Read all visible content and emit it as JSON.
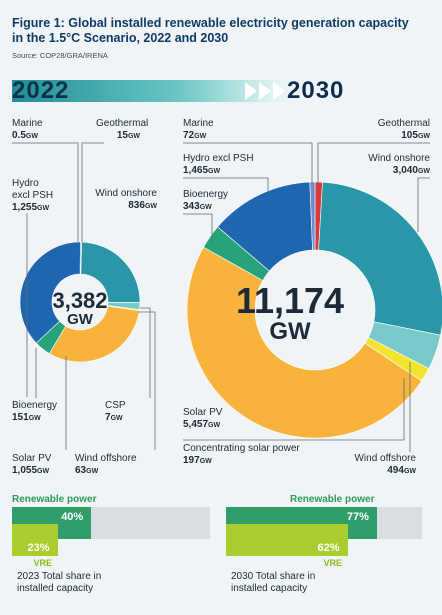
{
  "header": {
    "title": "Figure 1: Global installed renewable electricity generation capacity in the 1.5°C Scenario, 2022 and 2030",
    "source": "Source: COP28/GRA/IRENA"
  },
  "years": {
    "left": "2022",
    "right": "2030"
  },
  "unit": "GW",
  "colors": {
    "solar": "#f7b33b",
    "wind_onshore": "#2a97a8",
    "wind_offshore": "#79c8cc",
    "hydro": "#1f66b1",
    "bioenergy": "#26a37a",
    "geothermal": "#d93a3a",
    "marine": "#6b8fd6",
    "csp": "#f2e52e",
    "renewable_bar": "#2f9e6a",
    "vre_bar": "#a9cd2e",
    "bar_bg": "#dadee2"
  },
  "chart_data": [
    {
      "type": "pie",
      "year": "2022",
      "total": "3,382",
      "total_unit": "GW",
      "slices": [
        {
          "key": "geothermal",
          "name": "Geothermal",
          "value": 15,
          "label_value": "15"
        },
        {
          "key": "wind_onshore",
          "name": "Wind onshore",
          "value": 836,
          "label_value": "836"
        },
        {
          "key": "wind_offshore",
          "name": "Wind offshore",
          "value": 63,
          "label_value": "63"
        },
        {
          "key": "csp",
          "name": "CSP",
          "value": 7,
          "label_value": "7"
        },
        {
          "key": "solar",
          "name": "Solar PV",
          "value": 1055,
          "label_value": "1,055"
        },
        {
          "key": "bioenergy",
          "name": "Bioenergy",
          "value": 151,
          "label_value": "151"
        },
        {
          "key": "hydro",
          "name": "Hydro excl PSH",
          "value": 1255,
          "label_value": "1,255"
        },
        {
          "key": "marine",
          "name": "Marine",
          "value": 0.5,
          "label_value": "0.5"
        }
      ]
    },
    {
      "type": "pie",
      "year": "2030",
      "total": "11,174",
      "total_unit": "GW",
      "slices": [
        {
          "key": "geothermal",
          "name": "Geothermal",
          "value": 105,
          "label_value": "105"
        },
        {
          "key": "wind_onshore",
          "name": "Wind onshore",
          "value": 3040,
          "label_value": "3,040"
        },
        {
          "key": "wind_offshore",
          "name": "Wind offshore",
          "value": 494,
          "label_value": "494"
        },
        {
          "key": "csp",
          "name": "Concentrating solar power",
          "value": 197,
          "label_value": "197"
        },
        {
          "key": "solar",
          "name": "Solar PV",
          "value": 5457,
          "label_value": "5,457"
        },
        {
          "key": "bioenergy",
          "name": "Bioenergy",
          "value": 343,
          "label_value": "343"
        },
        {
          "key": "hydro",
          "name": "Hydro excl PSH",
          "value": 1465,
          "label_value": "1,465"
        },
        {
          "key": "marine",
          "name": "Marine",
          "value": 72,
          "label_value": "72"
        }
      ]
    },
    {
      "type": "bar",
      "year": "2023",
      "title": "Renewable power",
      "series": [
        {
          "name": "Renewable power",
          "value": 40,
          "label": "40%"
        },
        {
          "name": "VRE",
          "value": 23,
          "label": "23%"
        }
      ],
      "caption_line1": "2023 Total share in",
      "caption_line2": "installed capacity"
    },
    {
      "type": "bar",
      "year": "2030",
      "title": "Renewable power",
      "series": [
        {
          "name": "Renewable power",
          "value": 77,
          "label": "77%"
        },
        {
          "name": "VRE",
          "value": 62,
          "label": "62%"
        }
      ],
      "caption_line1": "2030 Total share in",
      "caption_line2": "installed capacity"
    }
  ],
  "labels2022": {
    "marine": {
      "line1": "Marine",
      "value": "0.5"
    },
    "geothermal": {
      "line1": "Geothermal",
      "value": "15"
    },
    "hydro": {
      "line1": "Hydro",
      "line2": "excl PSH",
      "value": "1,255"
    },
    "wind_onshore": {
      "line1": "Wind onshore",
      "value": "836"
    },
    "bioenergy": {
      "line1": "Bioenergy",
      "value": "151"
    },
    "csp": {
      "line1": "CSP",
      "value": "7"
    },
    "solar": {
      "line1": "Solar PV",
      "value": "1,055"
    },
    "wind_offshore": {
      "line1": "Wind offshore",
      "value": "63"
    }
  },
  "labels2030": {
    "marine": {
      "line1": "Marine",
      "value": "72"
    },
    "geothermal": {
      "line1": "Geothermal",
      "value": "105"
    },
    "hydro": {
      "line1": "Hydro excl PSH",
      "value": "1,465"
    },
    "wind_onshore": {
      "line1": "Wind onshore",
      "value": "3,040"
    },
    "bioenergy": {
      "line1": "Bioenergy",
      "value": "343"
    },
    "solar": {
      "line1": "Solar PV",
      "value": "5,457"
    },
    "csp": {
      "line1": "Concentrating solar power",
      "value": "197"
    },
    "wind_offshore": {
      "line1": "Wind offshore",
      "value": "494"
    }
  },
  "vre_label": "VRE"
}
